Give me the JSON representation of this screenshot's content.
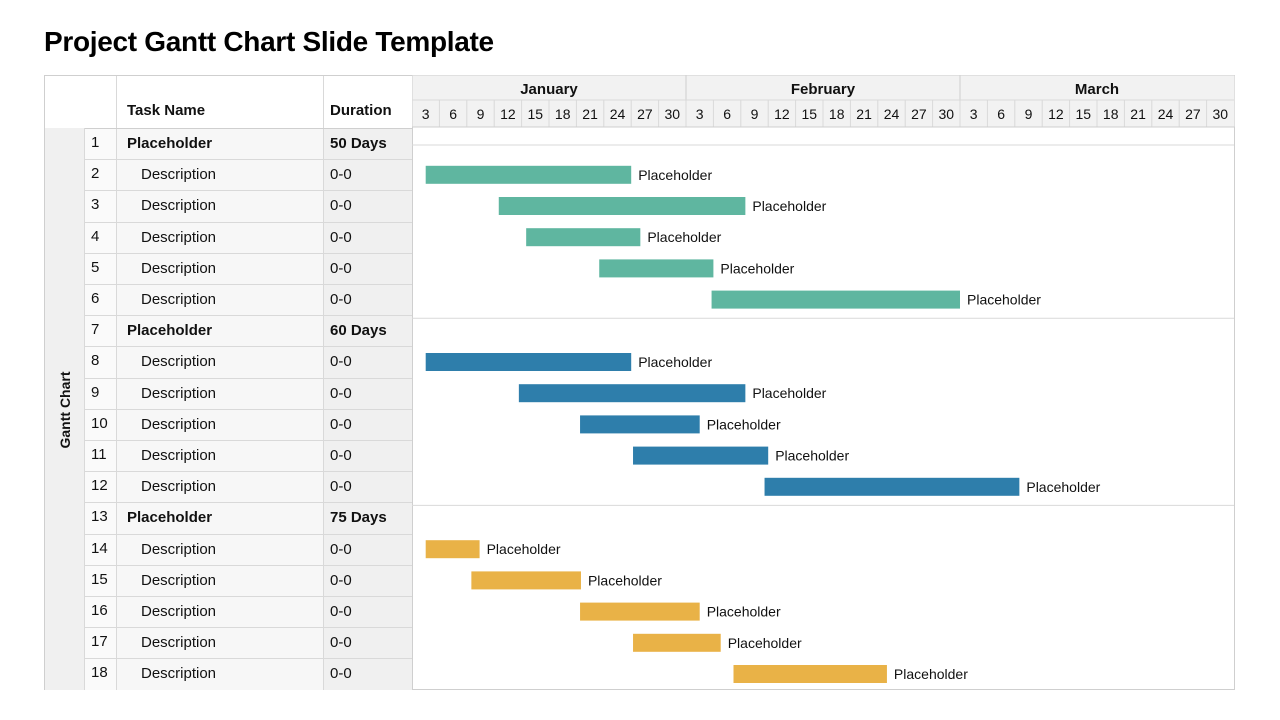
{
  "title": "Project Gantt Chart Slide Template",
  "side_label": "Gantt Chart",
  "table": {
    "header_task": "Task Name",
    "header_duration": "Duration",
    "rows": [
      {
        "num": "1",
        "name": "Placeholder",
        "duration": "50 Days",
        "type": "group"
      },
      {
        "num": "2",
        "name": "Description",
        "duration": "0-0",
        "type": "task"
      },
      {
        "num": "3",
        "name": "Description",
        "duration": "0-0",
        "type": "task"
      },
      {
        "num": "4",
        "name": "Description",
        "duration": "0-0",
        "type": "task"
      },
      {
        "num": "5",
        "name": "Description",
        "duration": "0-0",
        "type": "task"
      },
      {
        "num": "6",
        "name": "Description",
        "duration": "0-0",
        "type": "task"
      },
      {
        "num": "7",
        "name": "Placeholder",
        "duration": "60 Days",
        "type": "group"
      },
      {
        "num": "8",
        "name": "Description",
        "duration": "0-0",
        "type": "task"
      },
      {
        "num": "9",
        "name": "Description",
        "duration": "0-0",
        "type": "task"
      },
      {
        "num": "10",
        "name": "Description",
        "duration": "0-0",
        "type": "task"
      },
      {
        "num": "11",
        "name": "Description",
        "duration": "0-0",
        "type": "task"
      },
      {
        "num": "12",
        "name": "Description",
        "duration": "0-0",
        "type": "task"
      },
      {
        "num": "13",
        "name": "Placeholder",
        "duration": "75 Days",
        "type": "group"
      },
      {
        "num": "14",
        "name": "Description",
        "duration": "0-0",
        "type": "task"
      },
      {
        "num": "15",
        "name": "Description",
        "duration": "0-0",
        "type": "task"
      },
      {
        "num": "16",
        "name": "Description",
        "duration": "0-0",
        "type": "task"
      },
      {
        "num": "17",
        "name": "Description",
        "duration": "0-0",
        "type": "task"
      },
      {
        "num": "18",
        "name": "Description",
        "duration": "0-0",
        "type": "task"
      }
    ]
  },
  "chart_data": {
    "type": "gantt",
    "months": [
      "January",
      "February",
      "March"
    ],
    "day_ticks": [
      "3",
      "6",
      "9",
      "12",
      "15",
      "18",
      "21",
      "24",
      "27",
      "30"
    ],
    "x_range": [
      0,
      90
    ],
    "bar_label": "Placeholder",
    "groups": [
      {
        "color": "#5fb6a0",
        "bars": [
          {
            "row": 2,
            "start": 1.5,
            "end": 24
          },
          {
            "row": 3,
            "start": 9.5,
            "end": 36.5
          },
          {
            "row": 4,
            "start": 12.5,
            "end": 25
          },
          {
            "row": 5,
            "start": 20.5,
            "end": 33
          },
          {
            "row": 6,
            "start": 32.8,
            "end": 60
          }
        ]
      },
      {
        "color": "#2e7eab",
        "bars": [
          {
            "row": 8,
            "start": 1.5,
            "end": 24
          },
          {
            "row": 9,
            "start": 11.7,
            "end": 36.5
          },
          {
            "row": 10,
            "start": 18.4,
            "end": 31.5
          },
          {
            "row": 11,
            "start": 24.2,
            "end": 39
          },
          {
            "row": 12,
            "start": 38.6,
            "end": 66.5
          }
        ]
      },
      {
        "color": "#e9b247",
        "bars": [
          {
            "row": 14,
            "start": 1.5,
            "end": 7.4
          },
          {
            "row": 15,
            "start": 6.5,
            "end": 18.5
          },
          {
            "row": 16,
            "start": 18.4,
            "end": 31.5
          },
          {
            "row": 17,
            "start": 24.2,
            "end": 33.8
          },
          {
            "row": 18,
            "start": 35.2,
            "end": 52
          }
        ]
      }
    ]
  }
}
